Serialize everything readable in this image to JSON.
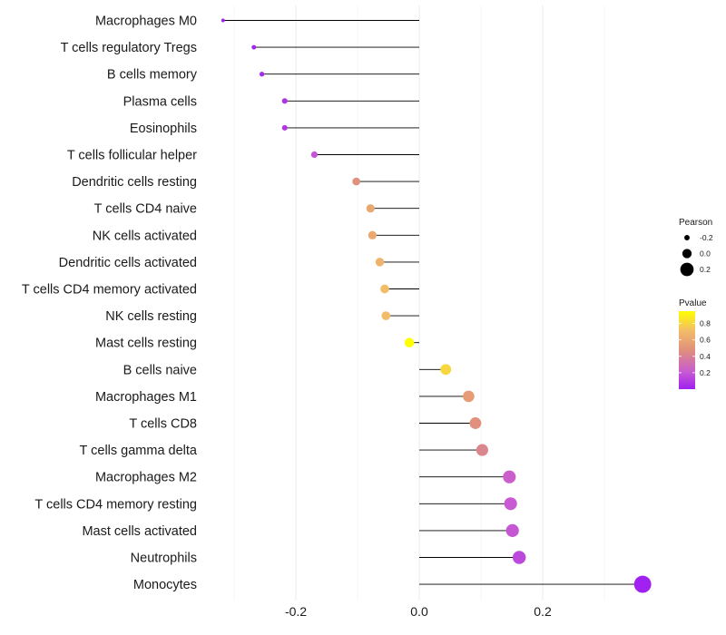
{
  "chart_data": {
    "type": "lollipop",
    "xlim": [
      -0.35,
      0.36
    ],
    "xticks": [
      -0.2,
      0.0,
      0.2
    ],
    "xtick_labels": [
      "-0.2",
      "0.0",
      "0.2"
    ],
    "grid": true,
    "categories": [
      "Macrophages M0",
      "T cells regulatory  Tregs",
      "B cells memory",
      "Plasma cells",
      "Eosinophils",
      "T cells follicular helper",
      "Dendritic cells resting",
      "T cells CD4 naive",
      "NK cells activated",
      "Dendritic cells activated",
      "T cells CD4 memory activated",
      "NK cells resting",
      "Mast cells resting",
      "B cells naive",
      "Macrophages M1",
      "T cells CD8",
      "T cells gamma delta",
      "Macrophages M2",
      "T cells CD4 memory resting",
      "Mast cells activated",
      "Neutrophils",
      "Monocytes"
    ],
    "pearson": [
      -0.318,
      -0.268,
      -0.255,
      -0.218,
      -0.218,
      -0.17,
      -0.102,
      -0.079,
      -0.076,
      -0.064,
      -0.056,
      -0.054,
      -0.016,
      0.043,
      0.08,
      0.091,
      0.102,
      0.146,
      0.148,
      0.151,
      0.162,
      0.362
    ],
    "pvalue": [
      0.01,
      0.02,
      0.03,
      0.07,
      0.08,
      0.18,
      0.45,
      0.58,
      0.59,
      0.65,
      0.7,
      0.7,
      0.95,
      0.8,
      0.52,
      0.45,
      0.4,
      0.22,
      0.2,
      0.19,
      0.14,
      0.002
    ],
    "size_legend": {
      "title": "Pearson",
      "values": [
        -0.2,
        0.0,
        0.2
      ],
      "labels": [
        "-0.2",
        "0.0",
        "0.2"
      ]
    },
    "color_legend": {
      "title": "Pvalue",
      "ticks": [
        0.2,
        0.4,
        0.6,
        0.8
      ],
      "tick_labels": [
        "0.2",
        "0.4",
        "0.6",
        "0.8"
      ],
      "range": [
        0,
        0.95
      ],
      "colors": [
        "#a020f0",
        "#c85ad2",
        "#e0907c",
        "#f2bc68",
        "#ffff00"
      ]
    },
    "legend_position": "right",
    "stem_color": "#000000"
  }
}
